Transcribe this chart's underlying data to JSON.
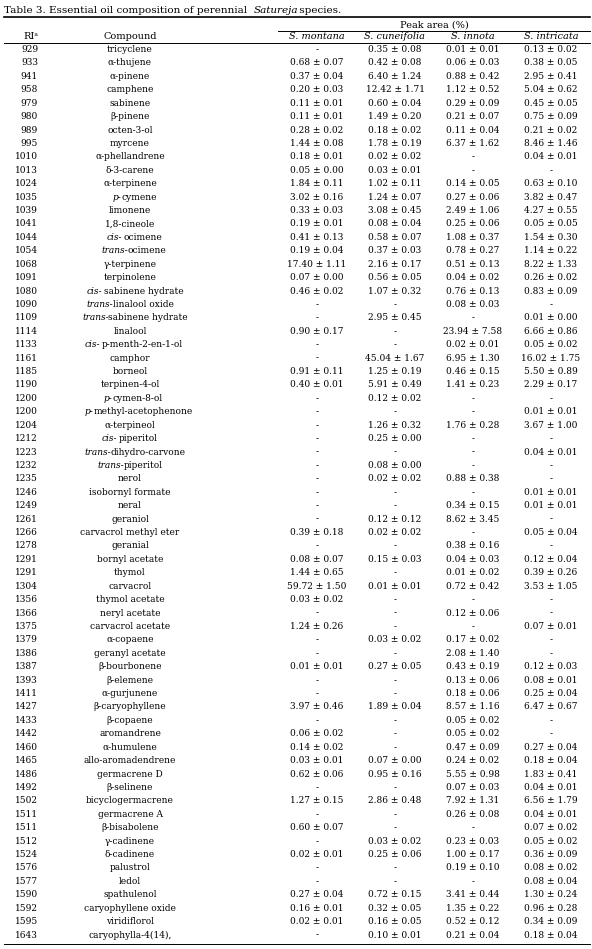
{
  "title_parts": [
    "Table 3. Essential oil composition of perennial ",
    "Satureja",
    " species."
  ],
  "header_main": "Peak area (%)",
  "col0_header": "RIᵃ",
  "col1_header": "Compound",
  "species": [
    "S. montana",
    "S. cuneifolia",
    "S. innota",
    "S. intricata"
  ],
  "rows": [
    [
      "929",
      "tricyclene",
      "-",
      "0.35 ± 0.08",
      "0.01 ± 0.01",
      "0.13 ± 0.02"
    ],
    [
      "933",
      "α-thujene",
      "0.68 ± 0.07",
      "0.42 ± 0.08",
      "0.06 ± 0.03",
      "0.38 ± 0.05"
    ],
    [
      "941",
      "α-pinene",
      "0.37 ± 0.04",
      "6.40 ± 1.24",
      "0.88 ± 0.42",
      "2.95 ± 0.41"
    ],
    [
      "958",
      "camphene",
      "0.20 ± 0.03",
      "12.42 ± 1.71",
      "1.12 ± 0.52",
      "5.04 ± 0.62"
    ],
    [
      "979",
      "sabinene",
      "0.11 ± 0.01",
      "0.60 ± 0.04",
      "0.29 ± 0.09",
      "0.45 ± 0.05"
    ],
    [
      "980",
      "β-pinene",
      "0.11 ± 0.01",
      "1.49 ± 0.20",
      "0.21 ± 0.07",
      "0.75 ± 0.09"
    ],
    [
      "989",
      "octen-3-ol",
      "0.28 ± 0.02",
      "0.18 ± 0.02",
      "0.11 ± 0.04",
      "0.21 ± 0.02"
    ],
    [
      "995",
      "myrcene",
      "1.44 ± 0.08",
      "1.78 ± 0.19",
      "6.37 ± 1.62",
      "8.46 ± 1.46"
    ],
    [
      "1010",
      "α-phellandrene",
      "0.18 ± 0.01",
      "0.02 ± 0.02",
      "-",
      "0.04 ± 0.01"
    ],
    [
      "1013",
      "δ-3-carene",
      "0.05 ± 0.00",
      "0.03 ± 0.01",
      "-",
      "-"
    ],
    [
      "1024",
      "α-terpinene",
      "1.84 ± 0.11",
      "1.02 ± 0.11",
      "0.14 ± 0.05",
      "0.63 ± 0.10"
    ],
    [
      "1035",
      "p-cymene",
      "3.02 ± 0.16",
      "1.24 ± 0.07",
      "0.27 ± 0.06",
      "3.82 ± 0.47"
    ],
    [
      "1039",
      "limonene",
      "0.33 ± 0.03",
      "3.08 ± 0.45",
      "2.49 ± 1.06",
      "4.27 ± 0.55"
    ],
    [
      "1041",
      "1,8-cineole",
      "0.19 ± 0.01",
      "0.08 ± 0.04",
      "0.25 ± 0.06",
      "0.05 ± 0.05"
    ],
    [
      "1044",
      "cis-ocimene",
      "0.41 ± 0.13",
      "0.58 ± 0.07",
      "1.08 ± 0.37",
      "1.54 ± 0.30"
    ],
    [
      "1054",
      "trans-ocimene",
      "0.19 ± 0.04",
      "0.37 ± 0.03",
      "0.78 ± 0.27",
      "1.14 ± 0.22"
    ],
    [
      "1068",
      "γ-terpinene",
      "17.40 ± 1.11",
      "2.16 ± 0.17",
      "0.51 ± 0.13",
      "8.22 ± 1.33"
    ],
    [
      "1091",
      "terpinolene",
      "0.07 ± 0.00",
      "0.56 ± 0.05",
      "0.04 ± 0.02",
      "0.26 ± 0.02"
    ],
    [
      "1080",
      "cis-sabinene hydrate",
      "0.46 ± 0.02",
      "1.07 ± 0.32",
      "0.76 ± 0.13",
      "0.83 ± 0.09"
    ],
    [
      "1090",
      "trans-linalool oxide",
      "-",
      "-",
      "0.08 ± 0.03",
      "-"
    ],
    [
      "1109",
      "trans-sabinene hydrate",
      "-",
      "2.95 ± 0.45",
      "-",
      "0.01 ± 0.00"
    ],
    [
      "1114",
      "linalool",
      "0.90 ± 0.17",
      "-",
      "23.94 ± 7.58",
      "6.66 ± 0.86"
    ],
    [
      "1133",
      "cis-p-menth-2-en-1-ol",
      "-",
      "-",
      "0.02 ± 0.01",
      "0.05 ± 0.02"
    ],
    [
      "1161",
      "camphor",
      "-",
      "45.04 ± 1.67",
      "6.95 ± 1.30",
      "16.02 ± 1.75"
    ],
    [
      "1185",
      "borneol",
      "0.91 ± 0.11",
      "1.25 ± 0.19",
      "0.46 ± 0.15",
      "5.50 ± 0.89"
    ],
    [
      "1190",
      "terpinen-4-ol",
      "0.40 ± 0.01",
      "5.91 ± 0.49",
      "1.41 ± 0.23",
      "2.29 ± 0.17"
    ],
    [
      "1200",
      "p-cymen-8-ol",
      "-",
      "0.12 ± 0.02",
      "-",
      "-"
    ],
    [
      "1200",
      "p-methyl-acetophenone",
      "-",
      "-",
      "-",
      "0.01 ± 0.01"
    ],
    [
      "1204",
      "α-terpineol",
      "-",
      "1.26 ± 0.32",
      "1.76 ± 0.28",
      "3.67 ± 1.00"
    ],
    [
      "1212",
      "cis-piperitol",
      "-",
      "0.25 ± 0.00",
      "-",
      "-"
    ],
    [
      "1223",
      "trans-dihydro-carvone",
      "-",
      "-",
      "-",
      "0.04 ± 0.01"
    ],
    [
      "1232",
      "trans-piperitol",
      "-",
      "0.08 ± 0.00",
      "-",
      "-"
    ],
    [
      "1235",
      "nerol",
      "-",
      "0.02 ± 0.02",
      "0.88 ± 0.38",
      "-"
    ],
    [
      "1246",
      "isobornyl formate",
      "-",
      "-",
      "-",
      "0.01 ± 0.01"
    ],
    [
      "1249",
      "neral",
      "-",
      "-",
      "0.34 ± 0.15",
      "0.01 ± 0.01"
    ],
    [
      "1261",
      "geraniol",
      "-",
      "0.12 ± 0.12",
      "8.62 ± 3.45",
      "-"
    ],
    [
      "1266",
      "carvacrol methyl eter",
      "0.39 ± 0.18",
      "0.02 ± 0.02",
      "-",
      "0.05 ± 0.04"
    ],
    [
      "1278",
      "geranial",
      "-",
      "-",
      "0.38 ± 0.16",
      "-"
    ],
    [
      "1291",
      "bornyl acetate",
      "0.08 ± 0.07",
      "0.15 ± 0.03",
      "0.04 ± 0.03",
      "0.12 ± 0.04"
    ],
    [
      "1291",
      "thymol",
      "1.44 ± 0.65",
      "-",
      "0.01 ± 0.02",
      "0.39 ± 0.26"
    ],
    [
      "1304",
      "carvacrol",
      "59.72 ± 1.50",
      "0.01 ± 0.01",
      "0.72 ± 0.42",
      "3.53 ± 1.05"
    ],
    [
      "1356",
      "thymol acetate",
      "0.03 ± 0.02",
      "-",
      "-",
      "-"
    ],
    [
      "1366",
      "neryl acetate",
      "-",
      "-",
      "0.12 ± 0.06",
      "-"
    ],
    [
      "1375",
      "carvacrol acetate",
      "1.24 ± 0.26",
      "-",
      "-",
      "0.07 ± 0.01"
    ],
    [
      "1379",
      "α-copaene",
      "-",
      "0.03 ± 0.02",
      "0.17 ± 0.02",
      "-"
    ],
    [
      "1386",
      "geranyl acetate",
      "-",
      "-",
      "2.08 ± 1.40",
      "-"
    ],
    [
      "1387",
      "β-bourbonene",
      "0.01 ± 0.01",
      "0.27 ± 0.05",
      "0.43 ± 0.19",
      "0.12 ± 0.03"
    ],
    [
      "1393",
      "β-elemene",
      "-",
      "-",
      "0.13 ± 0.06",
      "0.08 ± 0.01"
    ],
    [
      "1411",
      "α-gurjunene",
      "-",
      "-",
      "0.18 ± 0.06",
      "0.25 ± 0.04"
    ],
    [
      "1427",
      "β-caryophyllene",
      "3.97 ± 0.46",
      "1.89 ± 0.04",
      "8.57 ± 1.16",
      "6.47 ± 0.67"
    ],
    [
      "1433",
      "β-copaene",
      "-",
      "-",
      "0.05 ± 0.02",
      "-"
    ],
    [
      "1442",
      "aromandrene",
      "0.06 ± 0.02",
      "-",
      "0.05 ± 0.02",
      "-"
    ],
    [
      "1460",
      "α-humulene",
      "0.14 ± 0.02",
      "-",
      "0.47 ± 0.09",
      "0.27 ± 0.04"
    ],
    [
      "1465",
      "allo-aromadendrene",
      "0.03 ± 0.01",
      "0.07 ± 0.00",
      "0.24 ± 0.02",
      "0.18 ± 0.04"
    ],
    [
      "1486",
      "germacrene D",
      "0.62 ± 0.06",
      "0.95 ± 0.16",
      "5.55 ± 0.98",
      "1.83 ± 0.41"
    ],
    [
      "1492",
      "β-selinene",
      "-",
      "-",
      "0.07 ± 0.03",
      "0.04 ± 0.01"
    ],
    [
      "1502",
      "bicyclogermacrene",
      "1.27 ± 0.15",
      "2.86 ± 0.48",
      "7.92 ± 1.31",
      "6.56 ± 1.79"
    ],
    [
      "1511",
      "germacrene A",
      "-",
      "-",
      "0.26 ± 0.08",
      "0.04 ± 0.01"
    ],
    [
      "1511",
      "β-bisabolene",
      "0.60 ± 0.07",
      "-",
      "-",
      "0.07 ± 0.02"
    ],
    [
      "1512",
      "γ-cadinene",
      "-",
      "0.03 ± 0.02",
      "0.23 ± 0.03",
      "0.05 ± 0.02"
    ],
    [
      "1524",
      "δ-cadinene",
      "0.02 ± 0.01",
      "0.25 ± 0.06",
      "1.00 ± 0.17",
      "0.36 ± 0.09"
    ],
    [
      "1576",
      "palustrol",
      "-",
      "-",
      "0.19 ± 0.10",
      "0.08 ± 0.02"
    ],
    [
      "1577",
      "ledol",
      "-",
      "-",
      "-",
      "0.08 ± 0.04"
    ],
    [
      "1590",
      "spathulenol",
      "0.27 ± 0.04",
      "0.72 ± 0.15",
      "3.41 ± 0.44",
      "1.30 ± 0.24"
    ],
    [
      "1592",
      "caryophyllene oxide",
      "0.16 ± 0.01",
      "0.32 ± 0.05",
      "1.35 ± 0.22",
      "0.96 ± 0.28"
    ],
    [
      "1595",
      "viridiflorol",
      "0.02 ± 0.01",
      "0.16 ± 0.05",
      "0.52 ± 0.12",
      "0.34 ± 0.09"
    ],
    [
      "1643",
      "caryophylla-4(14),",
      "-",
      "0.10 ± 0.01",
      "0.21 ± 0.04",
      "0.18 ± 0.04"
    ]
  ],
  "bg_color": "#ffffff",
  "text_color": "#000000",
  "line_color": "#000000"
}
